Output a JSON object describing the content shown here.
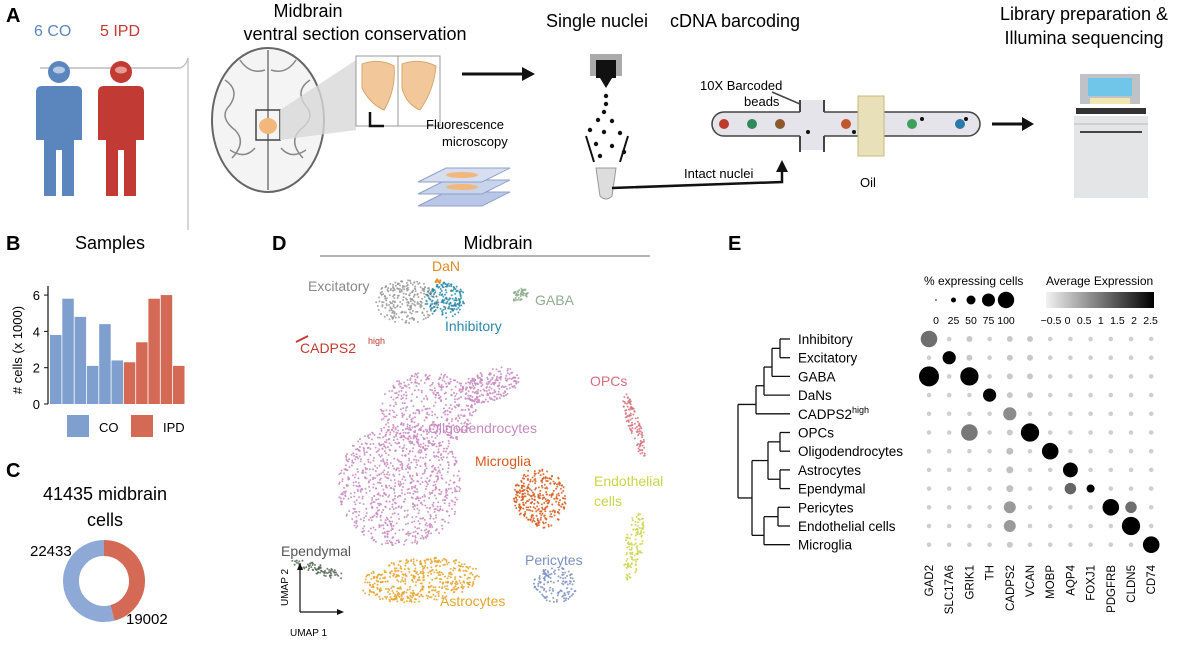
{
  "panel_a": {
    "letter": "A",
    "co_label": "6 CO",
    "ipd_label": "5 IPD",
    "midbrain_title_1": "Midbrain",
    "midbrain_title_2": "ventral section conservation",
    "fluor_1": "Fluorescence",
    "fluor_2": "microscopy",
    "nuclei_title": "Single nuclei",
    "barcoding_title": "cDNA barcoding",
    "beads_1": "10X Barcoded",
    "beads_2": "beads",
    "intact": "Intact nuclei",
    "oil": "Oil",
    "library_1": "Library preparation &",
    "library_2": "Illumina sequencing",
    "colors": {
      "co": "#5b86bd",
      "ipd": "#c23a34",
      "brain": "#8a8a8a",
      "tissue": "#f2c89a"
    }
  },
  "panel_b": {
    "letter": "B",
    "title": "Samples",
    "ylabel": "# cells (x 1000)",
    "legend_co": "CO",
    "legend_ipd": "IPD"
  },
  "panel_c": {
    "letter": "C",
    "title_1": "41435 midbrain",
    "title_2": "cells",
    "co_count": "22433",
    "ipd_count": "19002"
  },
  "panel_d": {
    "letter": "D",
    "title": "Midbrain",
    "umap1": "UMAP 1",
    "umap2": "UMAP 2",
    "labels": {
      "excitatory": "Excitatory",
      "dan": "DaN",
      "gaba": "GABA",
      "inhibitory": "Inhibitory",
      "cadps2": "CADPS2",
      "cadps2_sup": "high",
      "opcs": "OPCs",
      "oligo": "Oligodendrocytes",
      "microglia": "Microglia",
      "endo_1": "Endothelial",
      "endo_2": "cells",
      "pericytes": "Pericytes",
      "ependymal": "Ependymal",
      "astro": "Astrocytes"
    },
    "colors": {
      "excitatory": "#9a9a9a",
      "dan": "#e08a20",
      "gaba": "#8fae8f",
      "inhibitory": "#2a8aa8",
      "cadps2": "#c23a34",
      "opcs": "#d6707a",
      "oligo": "#c889c0",
      "microglia": "#d65a20",
      "endo": "#c8d64a",
      "pericytes": "#7a90c0",
      "ependymal": "#5a6a5a",
      "astro": "#e6a530"
    }
  },
  "panel_e": {
    "letter": "E",
    "legend_pct_title": "% expressing cells",
    "legend_pct_ticks": [
      "0",
      "25",
      "50",
      "75",
      "100"
    ],
    "legend_avg_title": "Average Expression",
    "legend_avg_ticks": [
      "−0.5",
      "0",
      "0.5",
      "1",
      "1.5",
      "2",
      "2.5"
    ],
    "cell_types": [
      {
        "label": "Inhibitory"
      },
      {
        "label": "Excitatory"
      },
      {
        "label": "GABA"
      },
      {
        "label": "DaNs"
      },
      {
        "label": "CADPS2",
        "sup": "high"
      },
      {
        "label": "OPCs"
      },
      {
        "label": "Oligodendrocytes"
      },
      {
        "label": "Astrocytes"
      },
      {
        "label": "Ependymal"
      },
      {
        "label": "Pericytes"
      },
      {
        "label": "Endothelial cells"
      },
      {
        "label": "Microglia"
      }
    ],
    "genes": [
      "GAD2",
      "SLC17A6",
      "GRIK1",
      "TH",
      "CADPS2",
      "VCAN",
      "MOBP",
      "AQP4",
      "FOXJ1",
      "PDGFRB",
      "CLDN5",
      "CD74"
    ]
  },
  "chart_data": [
    {
      "type": "bar",
      "title": "Samples",
      "ylabel": "# cells (x 1000)",
      "ylim": [
        0,
        6.5
      ],
      "yticks": [
        0,
        2,
        4,
        6
      ],
      "series": [
        {
          "name": "CO",
          "color": "#7fa0cf",
          "values": [
            3.8,
            5.8,
            4.8,
            2.1,
            4.4,
            2.4
          ]
        },
        {
          "name": "IPD",
          "color": "#d46a55",
          "values": [
            2.3,
            3.4,
            5.8,
            6.0,
            2.1
          ]
        }
      ]
    },
    {
      "type": "pie",
      "title": "41435 midbrain cells",
      "values": [
        22433,
        19002
      ],
      "colors": [
        "#8ea9d6",
        "#d46a55"
      ]
    }
  ]
}
